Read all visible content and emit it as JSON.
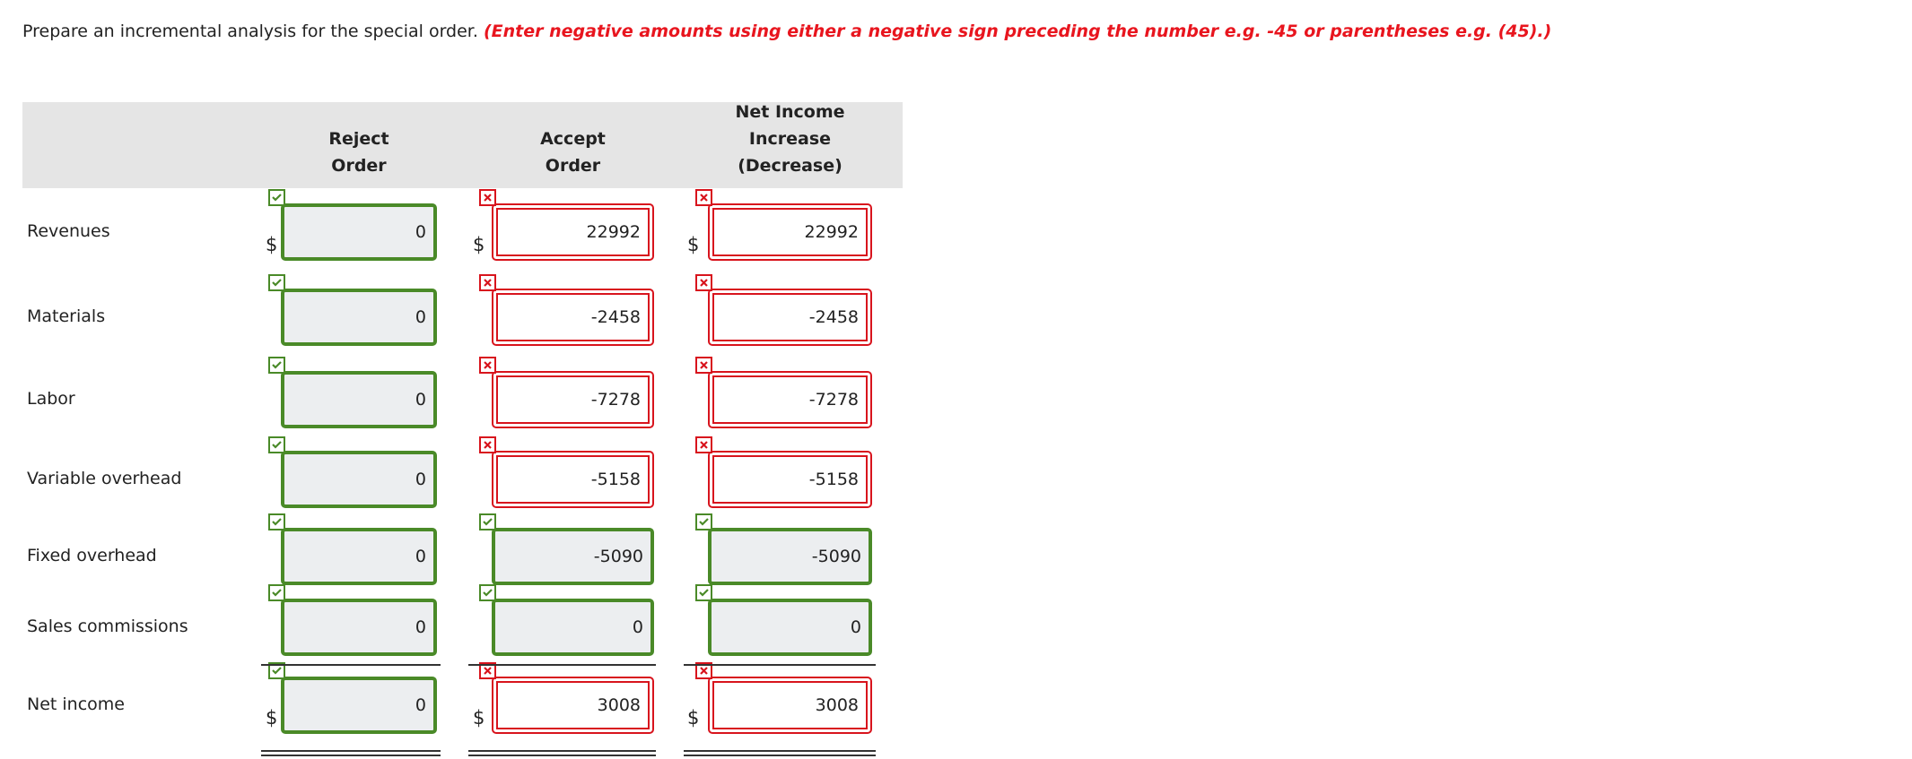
{
  "instruction": {
    "text": "Prepare an incremental analysis for the special order.",
    "note": "(Enter negative amounts using either a negative sign preceding the number e.g. -45 or parentheses e.g. (45).)"
  },
  "table": {
    "columns": [
      [
        "Reject",
        "Order"
      ],
      [
        "Accept",
        "Order"
      ],
      [
        "Net Income",
        "Increase",
        "(Decrease)"
      ]
    ],
    "rows": [
      {
        "label": "Revenues",
        "currency": "$",
        "cells": [
          {
            "value": 0,
            "status": "correct"
          },
          {
            "value": 22992,
            "status": "incorrect"
          },
          {
            "value": 22992,
            "status": "incorrect"
          }
        ]
      },
      {
        "label": "Materials",
        "cells": [
          {
            "value": 0,
            "status": "correct"
          },
          {
            "value": -2458,
            "status": "incorrect"
          },
          {
            "value": -2458,
            "status": "incorrect"
          }
        ]
      },
      {
        "label": "Labor",
        "cells": [
          {
            "value": 0,
            "status": "correct"
          },
          {
            "value": -7278,
            "status": "incorrect"
          },
          {
            "value": -7278,
            "status": "incorrect"
          }
        ]
      },
      {
        "label": "Variable overhead",
        "cells": [
          {
            "value": 0,
            "status": "correct"
          },
          {
            "value": -5158,
            "status": "incorrect"
          },
          {
            "value": -5158,
            "status": "incorrect"
          }
        ]
      },
      {
        "label": "Fixed overhead",
        "cells": [
          {
            "value": 0,
            "status": "correct"
          },
          {
            "value": -5090,
            "status": "correct"
          },
          {
            "value": -5090,
            "status": "correct"
          }
        ]
      },
      {
        "label": "Sales commissions",
        "cells": [
          {
            "value": 0,
            "status": "correct"
          },
          {
            "value": 0,
            "status": "correct"
          },
          {
            "value": 0,
            "status": "correct"
          }
        ]
      },
      {
        "label": "Net income",
        "currency": "$",
        "total": true,
        "cells": [
          {
            "value": 0,
            "status": "correct"
          },
          {
            "value": 3008,
            "status": "incorrect"
          },
          {
            "value": 3008,
            "status": "incorrect"
          }
        ]
      }
    ]
  }
}
